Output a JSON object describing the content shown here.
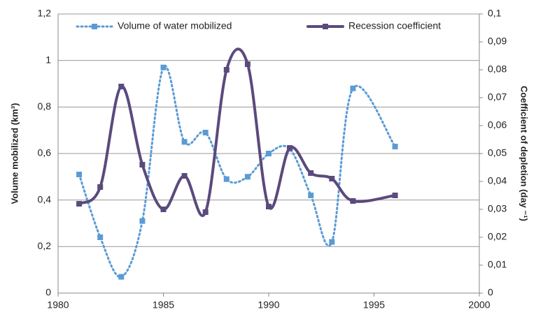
{
  "chart_data": {
    "type": "line",
    "x": [
      1981,
      1982,
      1983,
      1984,
      1985,
      1986,
      1987,
      1988,
      1989,
      1990,
      1991,
      1992,
      1993,
      1994,
      1996
    ],
    "series": [
      {
        "name": "Volume of water mobilized",
        "color": "#5b9bd5",
        "style": "dotted",
        "values": [
          0.51,
          0.24,
          0.07,
          0.31,
          0.97,
          0.65,
          0.69,
          0.49,
          0.5,
          0.6,
          0.62,
          0.42,
          0.22,
          0.88,
          0.63
        ]
      },
      {
        "name": "Recession coefficient",
        "color": "#5b4a7d",
        "style": "solid",
        "axis": "y2",
        "values": [
          0.032,
          0.038,
          0.074,
          0.046,
          0.03,
          0.042,
          0.029,
          0.08,
          0.082,
          0.031,
          0.052,
          0.043,
          0.041,
          0.033,
          0.035
        ]
      }
    ],
    "xlim": [
      1980,
      2000
    ],
    "xticks": [
      1980,
      1985,
      1990,
      1995,
      2000
    ],
    "ylim": [
      0,
      1.2
    ],
    "yticks": [
      0,
      {
        "value": 0.2,
        "label": "0,2"
      },
      {
        "value": 0.4,
        "label": "0,4"
      },
      {
        "value": 0.6,
        "label": "0,6"
      },
      {
        "value": 0.8,
        "label": "0,8"
      },
      1,
      {
        "value": 1.2,
        "label": "1,2"
      }
    ],
    "y2lim": [
      0,
      0.1
    ],
    "y2ticks": [
      0,
      {
        "value": 0.01,
        "label": "0,01"
      },
      {
        "value": 0.02,
        "label": "0,02"
      },
      {
        "value": 0.03,
        "label": "0,03"
      },
      {
        "value": 0.04,
        "label": "0,04"
      },
      {
        "value": 0.05,
        "label": "0,05"
      },
      {
        "value": 0.06,
        "label": "0,06"
      },
      {
        "value": 0.07,
        "label": "0,07"
      },
      {
        "value": 0.08,
        "label": "0,08"
      },
      {
        "value": 0.09,
        "label": "0,09"
      },
      {
        "value": 0.1,
        "label": "0,1"
      }
    ],
    "ylabel": "Volume mobilized (km³)",
    "y2label": "Coefficient of depletion (day ⁻¹)",
    "grid": true,
    "legend": "top"
  }
}
